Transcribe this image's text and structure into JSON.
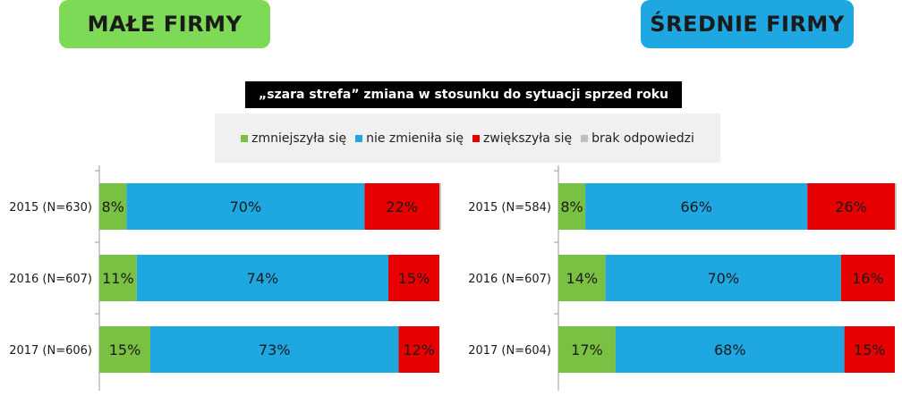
{
  "header": {
    "left_title": "MAŁE FIRMY",
    "right_title": "ŚREDNIE FIRMY",
    "left_color": "#7ed957",
    "right_color": "#1ea7e1"
  },
  "subtitle": "„szara strefa” zmiana w stosunku do sytuacji sprzed roku",
  "legend": [
    {
      "label": "zmniejszyła się",
      "color": "#7ac143"
    },
    {
      "label": "nie zmieniła się",
      "color": "#1ea7e1"
    },
    {
      "label": "zwiększyła się",
      "color": "#e60000"
    },
    {
      "label": "brak odpowiedzi",
      "color": "#bfbfbf"
    }
  ],
  "chart_data": [
    {
      "type": "bar",
      "orientation": "horizontal",
      "stacked": true,
      "title": "MAŁE FIRMY",
      "categories": [
        "2015 (N=630)",
        "2016 (N=607)",
        "2017 (N=606)"
      ],
      "series": [
        {
          "name": "zmniejszyła się",
          "values": [
            8,
            11,
            15
          ],
          "labels": [
            "8%",
            "11%",
            "15%"
          ]
        },
        {
          "name": "nie zmieniła się",
          "values": [
            70,
            74,
            73
          ],
          "labels": [
            "70%",
            "74%",
            "73%"
          ]
        },
        {
          "name": "zwiększyła się",
          "values": [
            22,
            15,
            12
          ],
          "labels": [
            "22%",
            "15%",
            "12%"
          ]
        },
        {
          "name": "brak odpowiedzi",
          "values": [
            0.5,
            0,
            0
          ],
          "labels": [
            "",
            "",
            ""
          ]
        }
      ],
      "xlim": [
        0,
        100
      ]
    },
    {
      "type": "bar",
      "orientation": "horizontal",
      "stacked": true,
      "title": "ŚREDNIE FIRMY",
      "categories": [
        "2015 (N=584)",
        "2016 (N=607)",
        "2017 (N=604)"
      ],
      "series": [
        {
          "name": "zmniejszyła się",
          "values": [
            8,
            14,
            17
          ],
          "labels": [
            "8%",
            "14%",
            "17%"
          ]
        },
        {
          "name": "nie zmieniła się",
          "values": [
            66,
            70,
            68
          ],
          "labels": [
            "66%",
            "70%",
            "68%"
          ]
        },
        {
          "name": "zwiększyła się",
          "values": [
            26,
            16,
            15
          ],
          "labels": [
            "26%",
            "16%",
            "15%"
          ]
        },
        {
          "name": "brak odpowiedzi",
          "values": [
            0.5,
            0,
            0
          ],
          "labels": [
            "",
            "",
            ""
          ]
        }
      ],
      "xlim": [
        0,
        100
      ]
    }
  ]
}
